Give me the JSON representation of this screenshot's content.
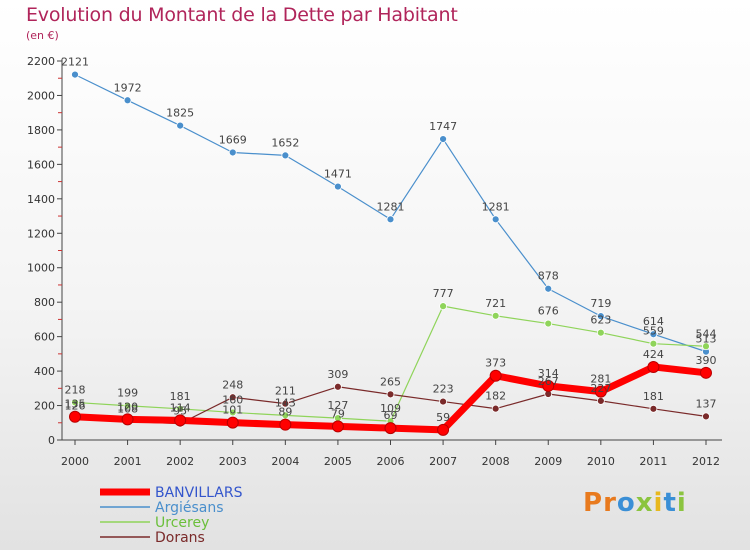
{
  "header": {
    "title": "Evolution du Montant de la Dette par Habitant",
    "subtitle": "(en €)"
  },
  "logo": {
    "letters": [
      "P",
      "r",
      "o",
      "x",
      "i",
      "t",
      "i"
    ],
    "colors": [
      "#e87a1e",
      "#e87a1e",
      "#3a8fd6",
      "#8bc43f",
      "#e8b81e",
      "#3a8fd6",
      "#8bc43f"
    ]
  },
  "chart_data": {
    "type": "line",
    "title": "Evolution du Montant de la Dette par Habitant",
    "subtitle": "(en €)",
    "xlabel": "",
    "ylabel": "",
    "x": [
      "2000",
      "2001",
      "2002",
      "2003",
      "2004",
      "2005",
      "2006",
      "2007",
      "2008",
      "2009",
      "2010",
      "2011",
      "2012"
    ],
    "ylim": [
      0,
      2200
    ],
    "yticks": [
      0,
      200,
      400,
      600,
      800,
      1000,
      1200,
      1400,
      1600,
      1800,
      2000,
      2200
    ],
    "grid": false,
    "legend_position": "bottom-left",
    "series": [
      {
        "name": "BANVILLARS",
        "color": "#ff0000",
        "legend_color": "#3355cc",
        "width": 7,
        "values": [
          135,
          120,
          114,
          101,
          89,
          79,
          69,
          59,
          373,
          314,
          281,
          424,
          390
        ]
      },
      {
        "name": "Argiésans",
        "color": "#4a8fcc",
        "legend_color": "#4a8fcc",
        "width": 1.2,
        "values": [
          2121,
          1972,
          1825,
          1669,
          1652,
          1471,
          1281,
          1747,
          1281,
          878,
          719,
          614,
          513
        ]
      },
      {
        "name": "Urcerey",
        "color": "#8fd45a",
        "legend_color": "#6abf3a",
        "width": 1.2,
        "values": [
          218,
          199,
          181,
          160,
          143,
          127,
          109,
          777,
          721,
          676,
          623,
          559,
          544
        ]
      },
      {
        "name": "Dorans",
        "color": "#7a2a2a",
        "legend_color": "#7a2a2a",
        "width": 1.2,
        "values": [
          126,
          108,
          95,
          248,
          211,
          309,
          265,
          223,
          182,
          267,
          227,
          181,
          137
        ]
      }
    ]
  }
}
